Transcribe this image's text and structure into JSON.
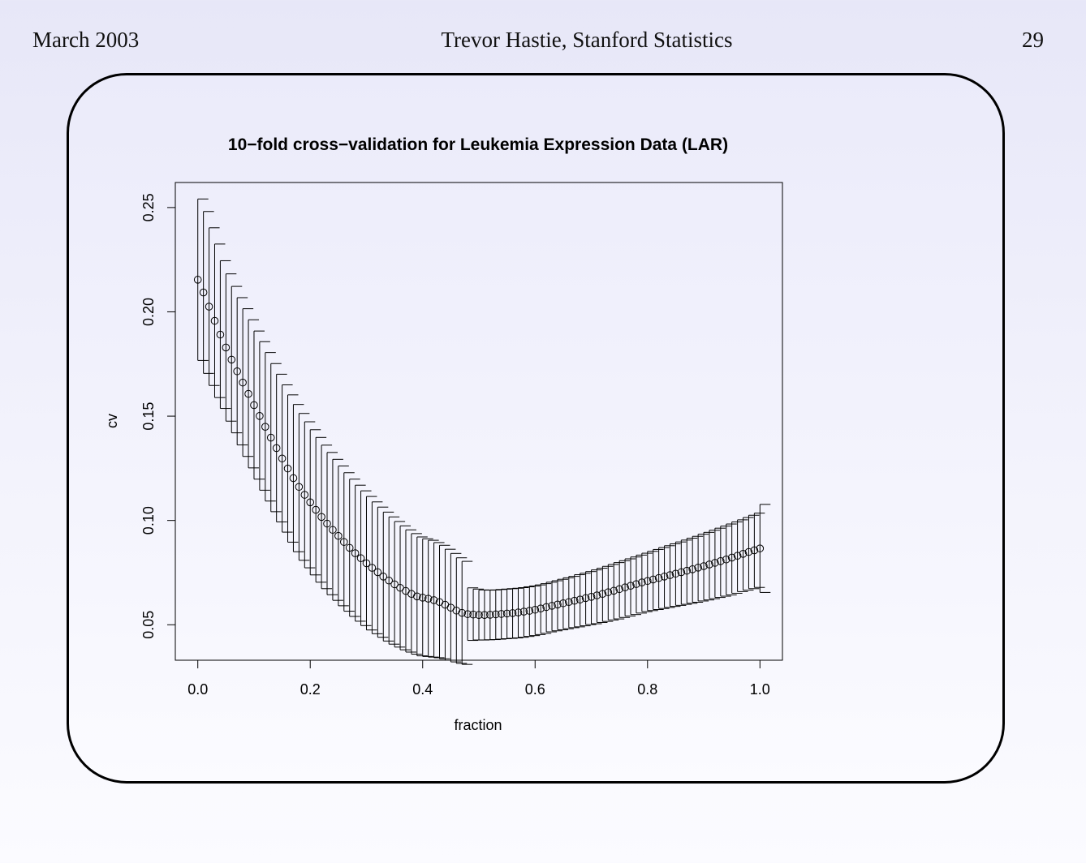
{
  "header": {
    "date": "March 2003",
    "author": "Trevor Hastie, Stanford Statistics",
    "page_number": "29"
  },
  "chart_data": {
    "type": "scatter",
    "title": "10−fold cross−validation for Leukemia Expression Data (LAR)",
    "xlabel": "fraction",
    "ylabel": "cv",
    "xlim": [
      -0.04,
      1.04
    ],
    "ylim": [
      0.033,
      0.262
    ],
    "x_ticks": [
      "0.0",
      "0.2",
      "0.4",
      "0.6",
      "0.8",
      "1.0"
    ],
    "y_ticks": [
      "0.05",
      "0.10",
      "0.15",
      "0.20",
      "0.25"
    ],
    "markers": "open circles with error bars",
    "x": [
      0.0,
      0.01,
      0.02,
      0.03,
      0.04,
      0.05,
      0.06,
      0.07,
      0.08,
      0.09,
      0.1,
      0.11,
      0.12,
      0.13,
      0.14,
      0.15,
      0.16,
      0.17,
      0.18,
      0.19,
      0.2,
      0.21,
      0.22,
      0.23,
      0.24,
      0.25,
      0.26,
      0.27,
      0.28,
      0.29,
      0.3,
      0.31,
      0.32,
      0.33,
      0.34,
      0.35,
      0.36,
      0.37,
      0.38,
      0.39,
      0.4,
      0.41,
      0.42,
      0.43,
      0.44,
      0.45,
      0.46,
      0.47,
      0.48,
      0.49,
      0.5,
      0.51,
      0.52,
      0.53,
      0.54,
      0.55,
      0.56,
      0.57,
      0.58,
      0.59,
      0.6,
      0.61,
      0.62,
      0.63,
      0.64,
      0.65,
      0.66,
      0.67,
      0.68,
      0.69,
      0.7,
      0.71,
      0.72,
      0.73,
      0.74,
      0.75,
      0.76,
      0.77,
      0.78,
      0.79,
      0.8,
      0.81,
      0.82,
      0.83,
      0.84,
      0.85,
      0.86,
      0.87,
      0.88,
      0.89,
      0.9,
      0.91,
      0.92,
      0.93,
      0.94,
      0.95,
      0.96,
      0.97,
      0.98,
      0.99,
      1.0
    ],
    "cv": [
      0.2154,
      0.2093,
      0.2025,
      0.1957,
      0.1891,
      0.1829,
      0.1771,
      0.1715,
      0.1661,
      0.1607,
      0.1553,
      0.1501,
      0.1449,
      0.1397,
      0.1347,
      0.1297,
      0.1249,
      0.1203,
      0.1161,
      0.1123,
      0.1087,
      0.1051,
      0.1017,
      0.0985,
      0.0955,
      0.0926,
      0.0897,
      0.0869,
      0.0843,
      0.0819,
      0.0795,
      0.0773,
      0.0752,
      0.0731,
      0.0712,
      0.0694,
      0.0677,
      0.0662,
      0.0648,
      0.0636,
      0.063,
      0.0625,
      0.0618,
      0.0609,
      0.0596,
      0.0582,
      0.0568,
      0.0557,
      0.0551,
      0.0549,
      0.0547,
      0.0547,
      0.0548,
      0.055,
      0.0552,
      0.0554,
      0.0556,
      0.0559,
      0.0563,
      0.0567,
      0.0572,
      0.0578,
      0.0585,
      0.0591,
      0.0597,
      0.0603,
      0.0609,
      0.0615,
      0.0621,
      0.0628,
      0.0634,
      0.0641,
      0.0648,
      0.0656,
      0.0663,
      0.0671,
      0.0679,
      0.0687,
      0.0695,
      0.0703,
      0.071,
      0.0717,
      0.0724,
      0.0731,
      0.0738,
      0.0745,
      0.0752,
      0.0759,
      0.0766,
      0.0774,
      0.0781,
      0.0789,
      0.0797,
      0.0805,
      0.0813,
      0.0822,
      0.0831,
      0.084,
      0.0849,
      0.0857,
      0.0866
    ],
    "upper": [
      0.2541,
      0.2481,
      0.2403,
      0.2325,
      0.2245,
      0.2182,
      0.2122,
      0.2068,
      0.2015,
      0.1962,
      0.1908,
      0.1857,
      0.1805,
      0.1752,
      0.1701,
      0.165,
      0.1602,
      0.1556,
      0.1513,
      0.1473,
      0.1435,
      0.1398,
      0.1361,
      0.1326,
      0.1293,
      0.1261,
      0.1229,
      0.1198,
      0.1169,
      0.1142,
      0.1115,
      0.1089,
      0.1064,
      0.104,
      0.1017,
      0.0995,
      0.0974,
      0.0955,
      0.0937,
      0.0921,
      0.0912,
      0.0905,
      0.0894,
      0.0881,
      0.0862,
      0.0842,
      0.0821,
      0.0804,
      0.0677,
      0.0671,
      0.0667,
      0.0666,
      0.0667,
      0.0669,
      0.0671,
      0.0673,
      0.0675,
      0.0678,
      0.0682,
      0.0686,
      0.0691,
      0.0697,
      0.0704,
      0.0711,
      0.0718,
      0.0725,
      0.0732,
      0.074,
      0.0747,
      0.0755,
      0.0763,
      0.0771,
      0.078,
      0.0789,
      0.0798,
      0.0807,
      0.0816,
      0.0825,
      0.0834,
      0.0843,
      0.0852,
      0.0861,
      0.087,
      0.0879,
      0.0888,
      0.0897,
      0.0906,
      0.0915,
      0.0924,
      0.0934,
      0.0943,
      0.0953,
      0.0963,
      0.0973,
      0.0983,
      0.0993,
      0.1003,
      0.1014,
      0.1025,
      0.1035,
      0.1077
    ],
    "lower": [
      0.1767,
      0.1705,
      0.1647,
      0.1589,
      0.1537,
      0.1476,
      0.142,
      0.1362,
      0.1307,
      0.1252,
      0.1198,
      0.1145,
      0.1093,
      0.1042,
      0.0993,
      0.0944,
      0.0896,
      0.085,
      0.0809,
      0.0773,
      0.0739,
      0.0704,
      0.0673,
      0.0644,
      0.0617,
      0.0591,
      0.0565,
      0.054,
      0.0517,
      0.0496,
      0.0475,
      0.0457,
      0.044,
      0.0422,
      0.0407,
      0.0393,
      0.038,
      0.0369,
      0.0359,
      0.0351,
      0.0348,
      0.0345,
      0.0342,
      0.0337,
      0.033,
      0.0322,
      0.0315,
      0.031,
      0.0425,
      0.0427,
      0.0427,
      0.0428,
      0.0429,
      0.0431,
      0.0433,
      0.0435,
      0.0437,
      0.044,
      0.0444,
      0.0448,
      0.0453,
      0.0459,
      0.0466,
      0.0471,
      0.0476,
      0.0481,
      0.0486,
      0.049,
      0.0495,
      0.0501,
      0.0505,
      0.0511,
      0.0516,
      0.0523,
      0.0528,
      0.0535,
      0.0542,
      0.0549,
      0.0556,
      0.0563,
      0.0568,
      0.0573,
      0.0578,
      0.0583,
      0.0588,
      0.0593,
      0.0598,
      0.0603,
      0.0608,
      0.0614,
      0.0619,
      0.0625,
      0.0631,
      0.0637,
      0.0643,
      0.0651,
      0.0659,
      0.0666,
      0.0673,
      0.0679,
      0.0655
    ],
    "grid": false,
    "legend": "none"
  }
}
